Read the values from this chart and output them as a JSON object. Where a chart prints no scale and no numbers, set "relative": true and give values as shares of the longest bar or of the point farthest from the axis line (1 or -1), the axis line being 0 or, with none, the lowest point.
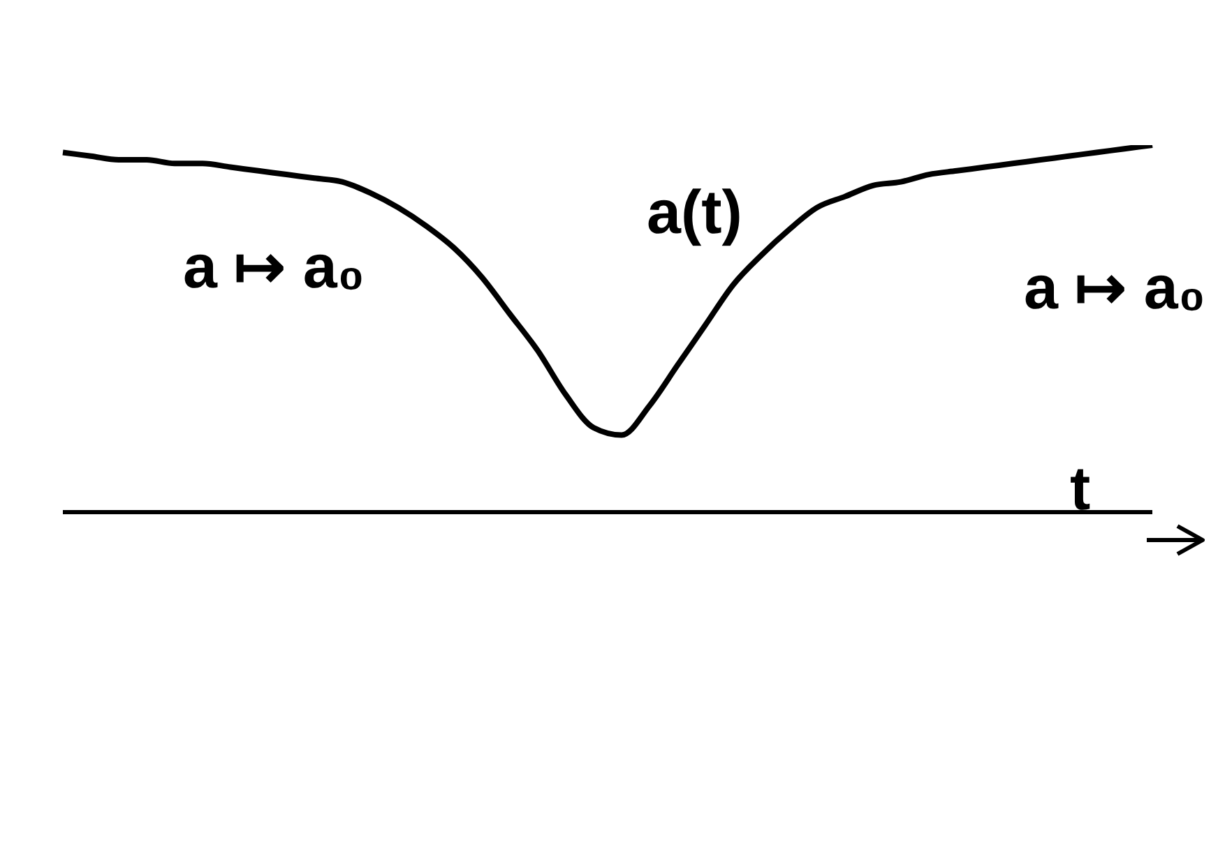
{
  "chart_data": {
    "type": "line",
    "relative": true,
    "xlabel": "t",
    "annotations": [
      "a(t)",
      "a ↦ a₀",
      "a ↦ a₀"
    ],
    "categories": [
      null,
      null,
      null,
      null,
      null,
      null,
      null,
      null,
      null,
      null,
      null,
      null,
      null,
      null,
      null,
      null,
      null,
      null,
      null,
      null,
      null,
      null,
      null,
      null,
      null,
      null,
      null,
      null,
      null,
      null,
      null,
      null,
      null,
      null,
      null,
      null,
      null,
      null,
      null,
      null
    ],
    "series": [
      {
        "color": "#000000",
        "values": [
          0.98,
          0.97,
          0.96,
          0.96,
          0.95,
          0.95,
          0.94,
          0.93,
          0.92,
          0.91,
          0.9,
          0.87,
          0.83,
          0.78,
          0.72,
          0.64,
          0.54,
          0.44,
          0.32,
          0.23,
          0.21,
          0.29,
          0.4,
          0.51,
          0.62,
          0.7,
          0.77,
          0.83,
          0.86,
          0.89,
          0.9,
          0.92,
          0.93,
          0.94,
          0.95,
          0.96,
          0.97,
          0.98,
          0.99,
          1
        ]
      }
    ],
    "grid": false,
    "legend": false,
    "marker": "none",
    "line_style": "solid"
  }
}
